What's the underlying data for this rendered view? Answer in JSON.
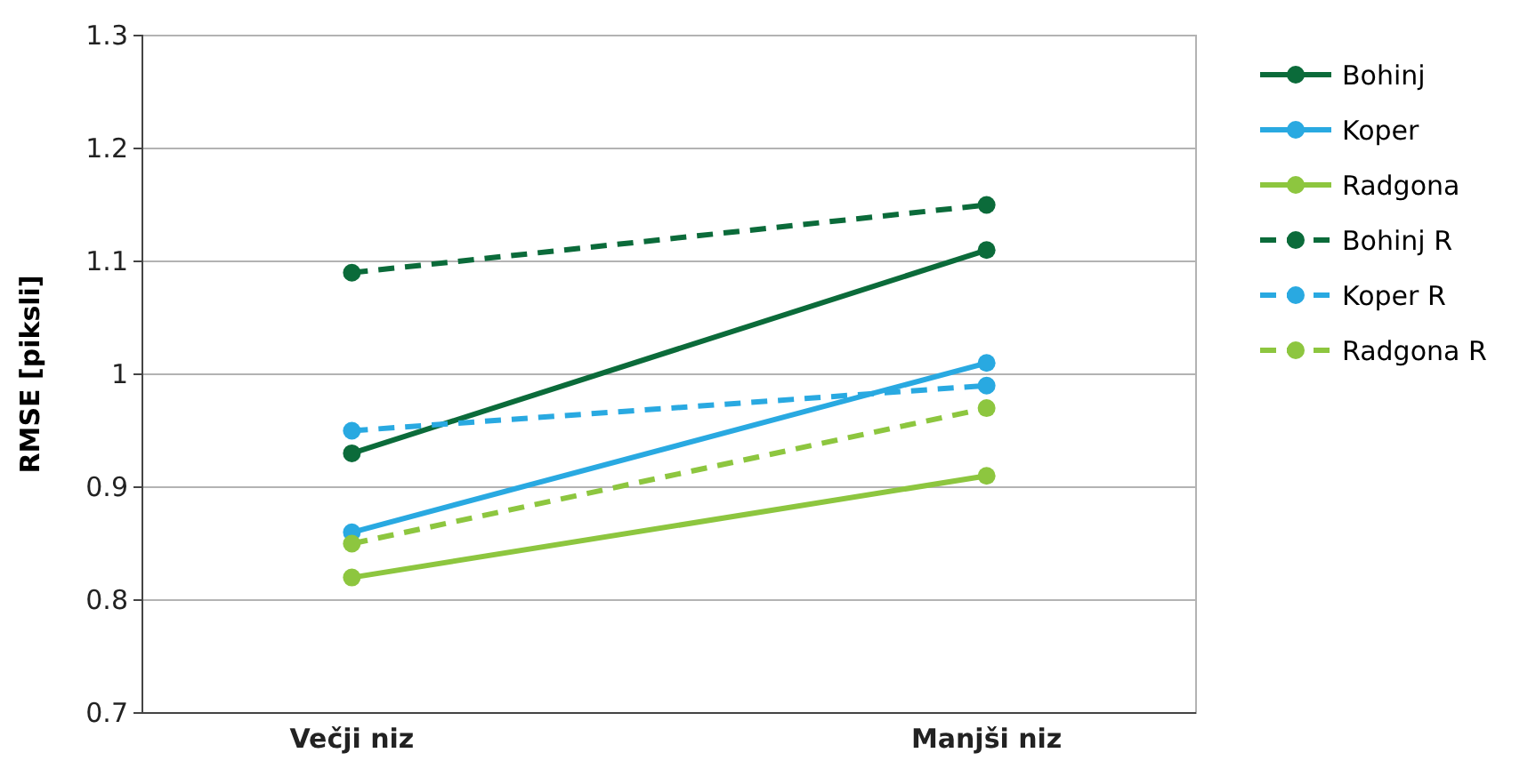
{
  "chart_data": {
    "type": "line",
    "ylabel": "RMSE  [piksli]",
    "categories": [
      "Večji niz",
      "Manjši niz"
    ],
    "series": [
      {
        "name": "Bohinj",
        "color": "#0b6b3a",
        "values": [
          0.93,
          1.11
        ],
        "line_style": "solid"
      },
      {
        "name": "Koper",
        "color": "#29a9e1",
        "values": [
          0.86,
          1.01
        ],
        "line_style": "solid"
      },
      {
        "name": "Radgona",
        "color": "#8dc63f",
        "values": [
          0.82,
          0.91
        ],
        "line_style": "solid"
      },
      {
        "name": "Bohinj R",
        "color": "#0b6b3a",
        "values": [
          1.09,
          1.15
        ],
        "line_style": "dashed"
      },
      {
        "name": "Koper R",
        "color": "#29a9e1",
        "values": [
          0.95,
          0.99
        ],
        "line_style": "dashed"
      },
      {
        "name": "Radgona R",
        "color": "#8dc63f",
        "values": [
          0.85,
          0.97
        ],
        "line_style": "dashed"
      }
    ],
    "ylim": [
      0.7,
      1.3
    ],
    "yticks": [
      0.7,
      0.8,
      0.9,
      1,
      1.1,
      1.2,
      1.3
    ],
    "grid": "y",
    "legend": "right",
    "marker": "circle"
  }
}
